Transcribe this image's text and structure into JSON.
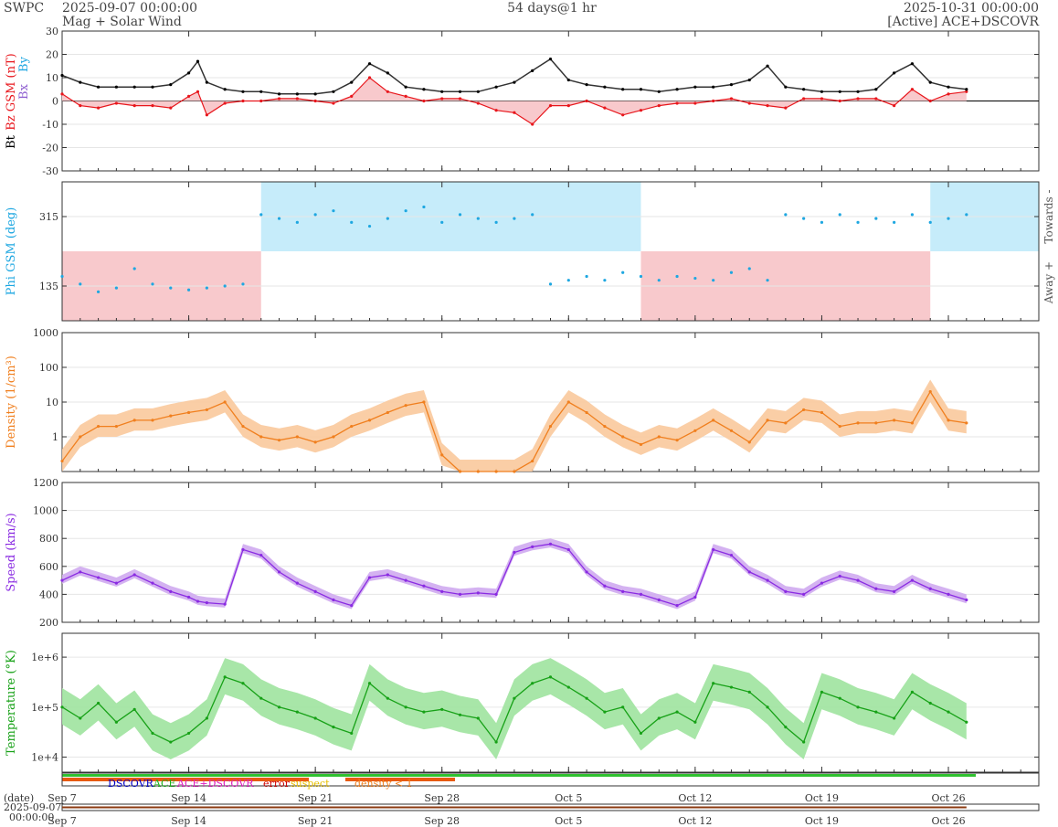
{
  "header": {
    "source": "SWPC",
    "start": "2025-09-07 00:00:00",
    "subtitle": "Mag + Solar Wind",
    "span": "54 days@1 hr",
    "end": "2025-10-31 00:00:00",
    "status": "[Active] ACE+DSCOVR"
  },
  "colors": {
    "bt": "#000000",
    "bz": "#e8161c",
    "bx": "#8e5fd0",
    "by": "#1ea7e1",
    "phi_points": "#1ea7e1",
    "towards_fill": "#c6ecfa",
    "away_fill": "#f8c9cc",
    "density": "#f07f1e",
    "density_band": "#f9c99c",
    "speed": "#8a2be2",
    "speed_band": "#cfaaf0",
    "temperature": "#17a117",
    "temperature_band": "#9fe39f",
    "grid": "#e6e6e6"
  },
  "chart_data": [
    {
      "type": "line",
      "id": "mag",
      "ylabels": [
        {
          "text": "Bt",
          "color": "#000000"
        },
        {
          "text": "Bz GSM (nT)",
          "color": "#e8161c"
        }
      ],
      "legend_extra": [
        {
          "text": "Bx",
          "color": "#8e5fd0"
        },
        {
          "text": "By",
          "color": "#1ea7e1"
        }
      ],
      "ylim": [
        -30,
        30
      ],
      "yticks": [
        -30,
        -20,
        -10,
        0,
        10,
        20,
        30
      ],
      "series": [
        {
          "key": "bt",
          "x": [
            0,
            1,
            2,
            3,
            4,
            5,
            6,
            7,
            7.5,
            8,
            9,
            10,
            11,
            12,
            13,
            14,
            15,
            16,
            17,
            18,
            19,
            20,
            21,
            22,
            23,
            24,
            25,
            26,
            27,
            28,
            29,
            30,
            31,
            32,
            33,
            34,
            35,
            36,
            37,
            38,
            39,
            40,
            41,
            42,
            43,
            44,
            45,
            46,
            47,
            48,
            49,
            50
          ],
          "y": [
            11,
            8,
            6,
            6,
            6,
            6,
            7,
            12,
            17,
            8,
            5,
            4,
            4,
            3,
            3,
            3,
            4,
            8,
            16,
            12,
            6,
            5,
            4,
            4,
            4,
            6,
            8,
            13,
            18,
            9,
            7,
            6,
            5,
            5,
            4,
            5,
            6,
            6,
            7,
            9,
            15,
            6,
            5,
            4,
            4,
            4,
            5,
            12,
            16,
            8,
            6,
            5
          ]
        },
        {
          "key": "bz",
          "x": [
            0,
            1,
            2,
            3,
            4,
            5,
            6,
            7,
            7.5,
            8,
            9,
            10,
            11,
            12,
            13,
            14,
            15,
            16,
            17,
            18,
            19,
            20,
            21,
            22,
            23,
            24,
            25,
            26,
            27,
            28,
            29,
            30,
            31,
            32,
            33,
            34,
            35,
            36,
            37,
            38,
            39,
            40,
            41,
            42,
            43,
            44,
            45,
            46,
            47,
            48,
            49,
            50
          ],
          "y": [
            3,
            -2,
            -3,
            -1,
            -2,
            -2,
            -3,
            2,
            4,
            -6,
            -1,
            0,
            0,
            1,
            1,
            0,
            -1,
            2,
            10,
            4,
            2,
            0,
            1,
            1,
            -1,
            -4,
            -5,
            -10,
            -2,
            -2,
            0,
            -3,
            -6,
            -4,
            -2,
            -1,
            -1,
            0,
            1,
            -1,
            -2,
            -3,
            1,
            1,
            0,
            1,
            1,
            -2,
            5,
            0,
            3,
            4
          ]
        }
      ]
    },
    {
      "type": "scatter",
      "id": "phi",
      "ylabel": "Phi GSM (deg)",
      "ylim": [
        45,
        405
      ],
      "yticks": [
        135,
        315
      ],
      "right_labels": [
        "Towards -",
        "Away +"
      ],
      "sectors": [
        {
          "x0": 0,
          "x1": 11,
          "side": "away"
        },
        {
          "x0": 11,
          "x1": 32,
          "side": "towards"
        },
        {
          "x0": 32,
          "x1": 48,
          "side": "away"
        },
        {
          "x0": 48,
          "x1": 54,
          "side": "towards"
        }
      ],
      "x": [
        0,
        1,
        2,
        3,
        4,
        5,
        6,
        7,
        8,
        9,
        10,
        11,
        12,
        13,
        14,
        15,
        16,
        17,
        18,
        19,
        20,
        21,
        22,
        23,
        24,
        25,
        26,
        27,
        28,
        29,
        30,
        31,
        32,
        33,
        34,
        35,
        36,
        37,
        38,
        39,
        40,
        41,
        42,
        43,
        44,
        45,
        46,
        47,
        48,
        49,
        50
      ],
      "y": [
        160,
        140,
        120,
        130,
        180,
        140,
        130,
        125,
        130,
        135,
        140,
        320,
        310,
        300,
        320,
        330,
        300,
        290,
        310,
        330,
        340,
        300,
        320,
        310,
        300,
        310,
        320,
        140,
        150,
        160,
        150,
        170,
        160,
        150,
        160,
        155,
        150,
        170,
        180,
        150,
        320,
        310,
        300,
        320,
        300,
        310,
        300,
        320,
        300,
        310,
        320
      ]
    },
    {
      "type": "line",
      "id": "density",
      "scale": "log",
      "ylabel": "Density (1/cm³)",
      "ylim": [
        0.1,
        1000
      ],
      "yticks": [
        1,
        10,
        100,
        1000
      ],
      "ytick_labels": [
        "1",
        "10",
        "100",
        "1000"
      ],
      "x": [
        0,
        1,
        2,
        3,
        4,
        5,
        6,
        7,
        8,
        9,
        10,
        11,
        12,
        13,
        14,
        15,
        16,
        17,
        18,
        19,
        20,
        21,
        22,
        23,
        24,
        25,
        26,
        27,
        28,
        29,
        30,
        31,
        32,
        33,
        34,
        35,
        36,
        37,
        38,
        39,
        40,
        41,
        42,
        43,
        44,
        45,
        46,
        47,
        48,
        49,
        50
      ],
      "y": [
        0.2,
        1,
        2,
        2,
        3,
        3,
        4,
        5,
        6,
        10,
        2,
        1,
        0.8,
        1,
        0.7,
        1,
        2,
        3,
        5,
        8,
        10,
        0.3,
        0.1,
        0.1,
        0.1,
        0.1,
        0.2,
        2,
        10,
        5,
        2,
        1,
        0.6,
        1,
        0.8,
        1.5,
        3,
        1.5,
        0.7,
        3,
        2.5,
        6,
        5,
        2,
        2.5,
        2.5,
        3,
        2.5,
        20,
        3,
        2.5
      ]
    },
    {
      "type": "line",
      "id": "speed",
      "ylabel": "Speed (km/s)",
      "ylim": [
        200,
        1200
      ],
      "yticks": [
        200,
        400,
        600,
        800,
        1000,
        1200
      ],
      "x": [
        0,
        1,
        2,
        3,
        4,
        5,
        6,
        7,
        7.5,
        8,
        9,
        10,
        11,
        12,
        13,
        14,
        15,
        16,
        17,
        18,
        19,
        20,
        21,
        22,
        23,
        24,
        25,
        26,
        27,
        28,
        29,
        30,
        31,
        32,
        33,
        34,
        35,
        36,
        37,
        38,
        39,
        40,
        41,
        42,
        43,
        44,
        45,
        46,
        47,
        48,
        49,
        50
      ],
      "y": [
        500,
        560,
        520,
        480,
        540,
        480,
        420,
        380,
        350,
        340,
        330,
        720,
        680,
        560,
        480,
        420,
        360,
        320,
        520,
        540,
        500,
        460,
        420,
        400,
        410,
        400,
        700,
        740,
        760,
        720,
        560,
        460,
        420,
        400,
        360,
        320,
        380,
        720,
        680,
        560,
        500,
        420,
        400,
        480,
        530,
        500,
        440,
        420,
        500,
        440,
        400,
        360
      ]
    },
    {
      "type": "line",
      "id": "temperature",
      "scale": "log",
      "ylabel": "Temperature (°K)",
      "ylim": [
        5000,
        3000000
      ],
      "yticks": [
        10000,
        100000,
        1000000
      ],
      "ytick_labels": [
        "1e+4",
        "1e+5",
        "1e+6"
      ],
      "x": [
        0,
        1,
        2,
        3,
        4,
        5,
        6,
        7,
        8,
        9,
        10,
        11,
        12,
        13,
        14,
        15,
        16,
        17,
        18,
        19,
        20,
        21,
        22,
        23,
        24,
        25,
        26,
        27,
        28,
        29,
        30,
        31,
        32,
        33,
        34,
        35,
        36,
        37,
        38,
        39,
        40,
        41,
        42,
        43,
        44,
        45,
        46,
        47,
        48,
        49,
        50
      ],
      "y": [
        100000,
        60000,
        120000,
        50000,
        90000,
        30000,
        20000,
        30000,
        60000,
        400000,
        300000,
        150000,
        100000,
        80000,
        60000,
        40000,
        30000,
        300000,
        150000,
        100000,
        80000,
        90000,
        70000,
        60000,
        20000,
        150000,
        300000,
        400000,
        250000,
        150000,
        80000,
        100000,
        30000,
        60000,
        80000,
        50000,
        300000,
        250000,
        200000,
        100000,
        40000,
        20000,
        200000,
        150000,
        100000,
        80000,
        60000,
        200000,
        120000,
        80000,
        50000
      ]
    }
  ],
  "source_strip": {
    "labels": [
      {
        "text": "DSCOVR",
        "color": "#0000c8"
      },
      {
        "text": "ACE",
        "color": "#1fb31f"
      },
      {
        "text": "ACE+DSCOVR",
        "color": "#e020c0"
      },
      {
        "text": "error",
        "color": "#d00000"
      },
      {
        "text": "suspect",
        "color": "#e8c000"
      },
      {
        "text": "density < 1",
        "color": "#f07f1e"
      }
    ]
  },
  "xaxis": {
    "days": 54,
    "ticks": [
      {
        "label": "Sep 7",
        "day": 0
      },
      {
        "label": "Sep 14",
        "day": 7
      },
      {
        "label": "Sep 21",
        "day": 14
      },
      {
        "label": "Sep 28",
        "day": 21
      },
      {
        "label": "Oct 5",
        "day": 28
      },
      {
        "label": "Oct 12",
        "day": 35
      },
      {
        "label": "Oct 19",
        "day": 42
      },
      {
        "label": "Oct 26",
        "day": 49
      }
    ],
    "date_label": "(date)",
    "date_value": "2025-09-07",
    "time_value": "00:00:00"
  }
}
